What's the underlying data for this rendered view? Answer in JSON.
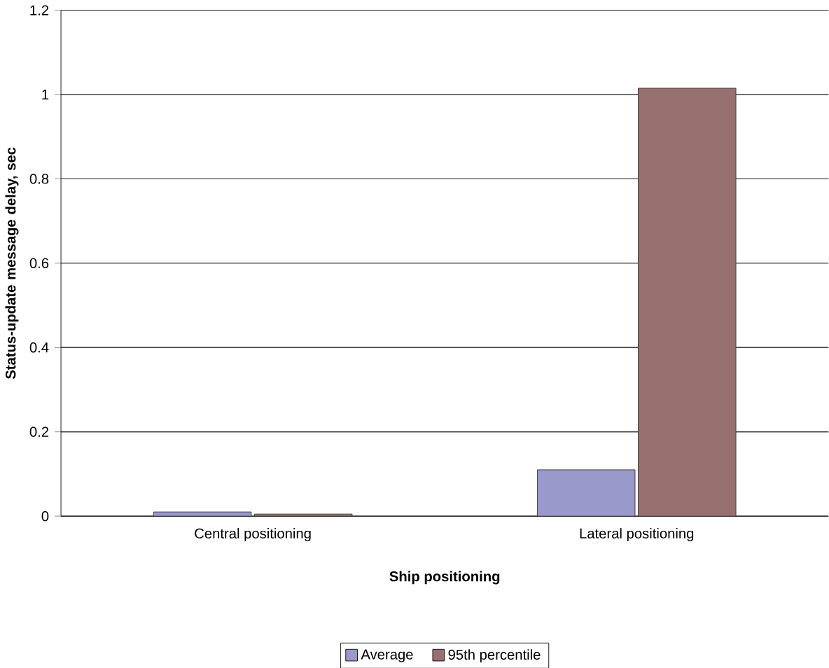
{
  "chart_data": {
    "type": "bar",
    "xlabel": "Ship positioning",
    "ylabel": "Status-update message delay, sec",
    "categories": [
      "Central positioning",
      "Lateral positioning"
    ],
    "series": [
      {
        "name": "Average",
        "color": "#9999cc",
        "values": [
          0.01,
          0.11
        ]
      },
      {
        "name": "95th percentile",
        "color": "#997070",
        "values": [
          0.005,
          1.015
        ]
      }
    ],
    "ylim": [
      0,
      1.2
    ],
    "yticks": [
      0,
      0.2,
      0.4,
      0.6,
      0.8,
      1,
      1.2
    ],
    "grid": "y",
    "legend": "bottom"
  }
}
